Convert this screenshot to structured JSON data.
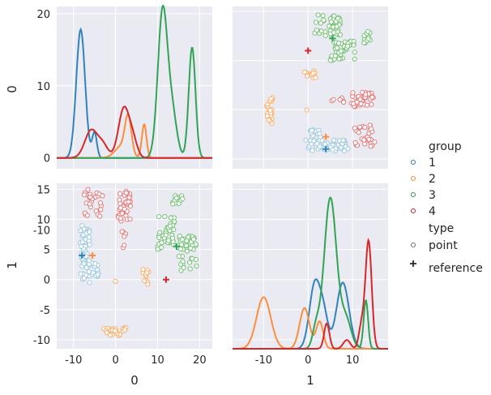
{
  "colors": {
    "group_1": "#3182bd",
    "group_2": "#fd8d3c",
    "group_3": "#31a354",
    "group_4": "#d62728",
    "group_1_light": "#9ecae1",
    "group_2_light": "#fdae6b",
    "group_3_light": "#74c476",
    "group_4_light": "#e77c7c",
    "panel_background": "#eaeaf2",
    "grid": "#ffffff",
    "text": "#262626"
  },
  "legend": {
    "group_title": "group",
    "groups": [
      "1",
      "2",
      "3",
      "4"
    ],
    "type_title": "type",
    "types": [
      "point",
      "reference"
    ]
  },
  "chart_data": {
    "type": "pairplot",
    "variables": [
      "0",
      "1"
    ],
    "hue": "group",
    "style": "type",
    "diag_kind": "kde",
    "axes": {
      "var0_range": [
        -14,
        23
      ],
      "var0_ticks": [
        -10,
        0,
        10,
        20
      ],
      "var1_range": [
        -11.5,
        16
      ],
      "var1_ticks": [
        -10,
        -5,
        0,
        5,
        10,
        15
      ],
      "diag0_density_ticks": [
        -10,
        0,
        10,
        20
      ],
      "diag0_tick_values": [
        -12.0,
        0.0,
        12.0,
        24.0
      ],
      "diag1_x_range": [
        -17,
        18
      ],
      "diag1_x_ticks": [
        -10,
        0,
        10
      ],
      "grid": true
    },
    "xlabels": [
      "0",
      "1"
    ],
    "ylabels": [
      "0",
      "1"
    ],
    "references": [
      {
        "group": "1",
        "x0": -8,
        "x1": 4
      },
      {
        "group": "2",
        "x0": -5.5,
        "x1": 4
      },
      {
        "group": "3",
        "x0": 14.5,
        "x1": 5.5
      },
      {
        "group": "4",
        "x0": 12,
        "x1": 0
      }
    ],
    "diag_kde": {
      "var0": [
        {
          "group": "1",
          "peaks": [
            {
              "center": -8.3,
              "height": 21.4,
              "width": 1.05
            },
            {
              "center": -5.0,
              "height": 4.2,
              "width": 0.55
            }
          ]
        },
        {
          "group": "2",
          "peaks": [
            {
              "center": 1.5,
              "height": 2.0,
              "width": 1.6
            },
            {
              "center": 3.0,
              "height": 6.0,
              "width": 0.75
            },
            {
              "center": 6.8,
              "height": 5.6,
              "width": 0.55
            }
          ]
        },
        {
          "group": "3",
          "peaks": [
            {
              "center": 11.2,
              "height": 24.5,
              "width": 1.15
            },
            {
              "center": 13.5,
              "height": 7.0,
              "width": 1.1
            },
            {
              "center": 18.2,
              "height": 18.4,
              "width": 0.8
            }
          ]
        },
        {
          "group": "4",
          "peaks": [
            {
              "center": -5.8,
              "height": 4.6,
              "width": 1.5
            },
            {
              "center": -3.0,
              "height": 2.0,
              "width": 1.2
            },
            {
              "center": 2.0,
              "height": 8.3,
              "width": 1.3
            },
            {
              "center": 4.2,
              "height": 2.5,
              "width": 1.0
            }
          ]
        }
      ],
      "var1": [
        {
          "group": "1",
          "peaks": [
            {
              "center": 1.5,
              "height": 6.6,
              "width": 1.2
            },
            {
              "center": 3.5,
              "height": 3.2,
              "width": 1.0
            },
            {
              "center": 7.8,
              "height": 6.8,
              "width": 1.4
            }
          ]
        },
        {
          "group": "2",
          "peaks": [
            {
              "center": -10.0,
              "height": 5.3,
              "width": 1.6
            },
            {
              "center": -0.8,
              "height": 4.2,
              "width": 1.1
            },
            {
              "center": 2.6,
              "height": 2.8,
              "width": 0.8
            }
          ]
        },
        {
          "group": "3",
          "peaks": [
            {
              "center": 5.0,
              "height": 15.5,
              "width": 1.4
            },
            {
              "center": 1.8,
              "height": 2.0,
              "width": 0.8
            },
            {
              "center": 8.5,
              "height": 3.0,
              "width": 1.2
            },
            {
              "center": 13.0,
              "height": 5.0,
              "width": 0.5
            }
          ]
        },
        {
          "group": "4",
          "peaks": [
            {
              "center": 4.2,
              "height": 2.6,
              "width": 0.6
            },
            {
              "center": 8.7,
              "height": 0.9,
              "width": 0.8
            },
            {
              "center": 12.0,
              "height": 2.3,
              "width": 0.6
            },
            {
              "center": 13.6,
              "height": 11.1,
              "width": 0.7
            }
          ]
        }
      ]
    },
    "scatter_clusters": [
      {
        "group": "1",
        "shape": "blob",
        "x0": [
          -8.5,
          -6.0
        ],
        "x1": [
          -0.5,
          9.0
        ],
        "n": 50
      },
      {
        "group": "1",
        "shape": "blob",
        "x0": [
          -7.0,
          -4.0
        ],
        "x1": [
          0.5,
          3.5
        ],
        "n": 20
      },
      {
        "group": "2",
        "shape": "arc",
        "x0": [
          -3.0,
          2.5
        ],
        "x1": [
          -9.5,
          -8.0
        ],
        "n": 22
      },
      {
        "group": "2",
        "shape": "arc",
        "x0": [
          6.5,
          8.0
        ],
        "x1": [
          -1.0,
          1.8
        ],
        "n": 12
      },
      {
        "group": "2",
        "shape": "blob",
        "x0": [
          -0.5,
          0.0
        ],
        "x1": [
          -0.5,
          -0.2
        ],
        "n": 1
      },
      {
        "group": "3",
        "shape": "blob",
        "x0": [
          10.0,
          14.0
        ],
        "x1": [
          5.0,
          10.5
        ],
        "n": 40
      },
      {
        "group": "3",
        "shape": "blob",
        "x0": [
          15.0,
          19.5
        ],
        "x1": [
          1.5,
          7.5
        ],
        "n": 45
      },
      {
        "group": "3",
        "shape": "blob",
        "x0": [
          13.5,
          16.0
        ],
        "x1": [
          12.5,
          14.0
        ],
        "n": 12
      },
      {
        "group": "4",
        "shape": "blob",
        "x0": [
          -7.5,
          -3.0
        ],
        "x1": [
          10.5,
          15.0
        ],
        "n": 30
      },
      {
        "group": "4",
        "shape": "blob",
        "x0": [
          0.5,
          4.0
        ],
        "x1": [
          9.5,
          15.0
        ],
        "n": 40
      },
      {
        "group": "4",
        "shape": "blob",
        "x0": [
          1.5,
          2.5
        ],
        "x1": [
          5.0,
          8.0
        ],
        "n": 6
      }
    ]
  }
}
